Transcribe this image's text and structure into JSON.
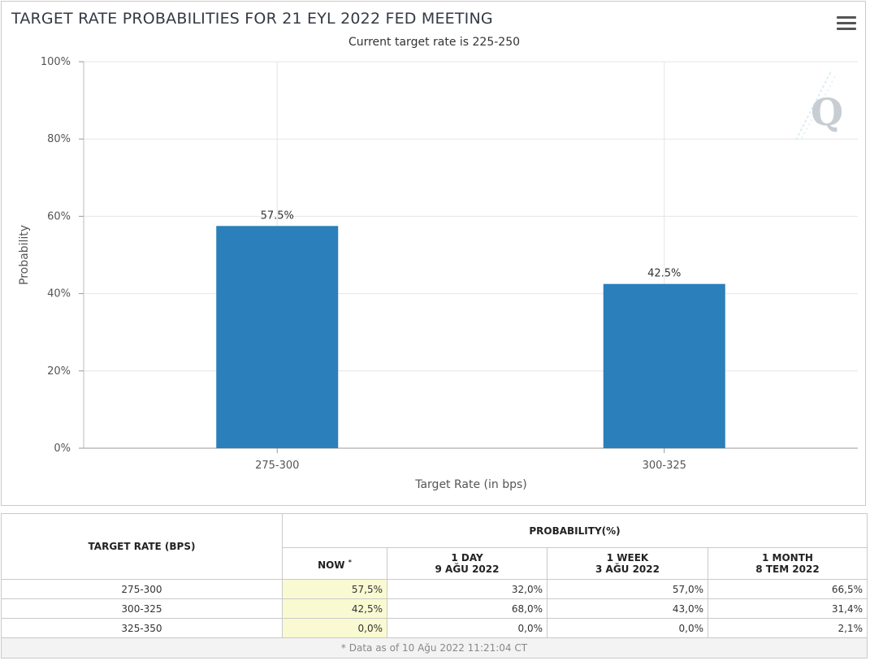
{
  "chart": {
    "title": "TARGET RATE PROBABILITIES FOR 21 EYL 2022 FED MEETING",
    "subtitle": "Current target rate is 225-250",
    "menu_icon": "hamburger-menu-icon",
    "watermark_icon": "q-logo-icon"
  },
  "chart_data": {
    "type": "bar",
    "title": "TARGET RATE PROBABILITIES FOR 21 EYL 2022 FED MEETING",
    "subtitle": "Current target rate is 225-250",
    "categories": [
      "275-300",
      "300-325"
    ],
    "values": [
      57.5,
      42.5
    ],
    "data_labels": [
      "57.5%",
      "42.5%"
    ],
    "xlabel": "Target Rate (in bps)",
    "ylabel": "Probability",
    "ylim": [
      0,
      100
    ],
    "yticks": [
      "0%",
      "20%",
      "40%",
      "60%",
      "80%",
      "100%"
    ],
    "grid": true,
    "legend": "none",
    "bar_color": "#2b7fba"
  },
  "table": {
    "col_rate": "TARGET RATE (BPS)",
    "col_prob": "PROBABILITY(%)",
    "col_now": "NOW",
    "col_now_mark": "*",
    "col_day_1": "1 DAY",
    "col_day_2": "9 AĞU 2022",
    "col_week_1": "1 WEEK",
    "col_week_2": "3 AĞU 2022",
    "col_month_1": "1 MONTH",
    "col_month_2": "8 TEM 2022",
    "rows": [
      {
        "rate": "275-300",
        "now": "57,5%",
        "day": "32,0%",
        "week": "57,0%",
        "month": "66,5%"
      },
      {
        "rate": "300-325",
        "now": "42,5%",
        "day": "68,0%",
        "week": "43,0%",
        "month": "31,4%"
      },
      {
        "rate": "325-350",
        "now": "0,0%",
        "day": "0,0%",
        "week": "0,0%",
        "month": "2,1%"
      }
    ],
    "footer": "* Data as of 10 Ağu 2022 11:21:04 CT"
  },
  "colors": {
    "bar": "#2b7fba",
    "now_highlight": "#fafad2",
    "grid": "#e6e6e6"
  }
}
